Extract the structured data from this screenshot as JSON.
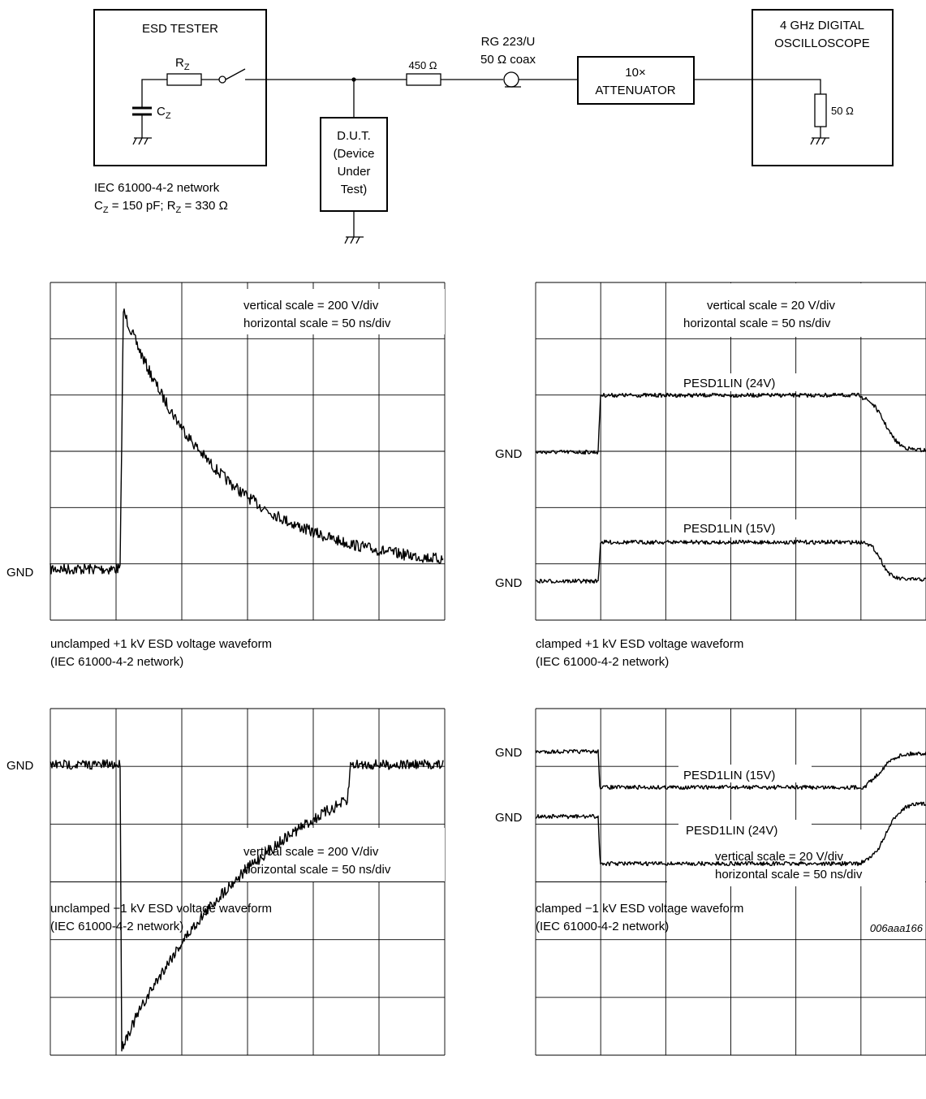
{
  "schematic": {
    "tester": {
      "title": "ESD TESTER",
      "rz": "R",
      "rz_sub": "Z",
      "cz": "C",
      "cz_sub": "Z",
      "network_line1": "IEC 61000-4-2 network",
      "network_line2_a": "C",
      "network_line2_sub1": "Z",
      "network_line2_b": " = 150 pF; R",
      "network_line2_sub2": "Z",
      "network_line2_c": " = 330 Ω"
    },
    "dut": {
      "line1": "D.U.T.",
      "line2": "(Device",
      "line3": "Under",
      "line4": "Test)"
    },
    "resistor_450": "450 Ω",
    "coax_line1": "RG 223/U",
    "coax_line2": "50 Ω coax",
    "attenuator_line1": "10×",
    "attenuator_line2": "ATTENUATOR",
    "scope_line1": "4 GHz DIGITAL",
    "scope_line2": "OSCILLOSCOPE",
    "scope_resistor": "50 Ω"
  },
  "panels": {
    "p1": {
      "scale_v": "vertical scale = 200 V/div",
      "scale_h": "horizontal scale = 50 ns/div",
      "gnd": "GND",
      "caption1": "unclamped +1 kV ESD voltage waveform",
      "caption2": "(IEC 61000-4-2 network)"
    },
    "p2": {
      "scale_v": "vertical scale = 20 V/div",
      "scale_h": "horizontal scale = 50 ns/div",
      "gnd_a": "GND",
      "gnd_b": "GND",
      "trace_a": "PESD1LIN (24V)",
      "trace_b": "PESD1LIN (15V)",
      "caption1": "clamped +1 kV ESD voltage waveform",
      "caption2": "(IEC 61000-4-2 network)"
    },
    "p3": {
      "scale_v": "vertical scale = 200 V/div",
      "scale_h": "horizontal scale = 50 ns/div",
      "gnd": "GND",
      "caption1": "unclamped −1 kV ESD voltage waveform",
      "caption2": "(IEC 61000-4-2 network)"
    },
    "p4": {
      "scale_v": "vertical scale = 20 V/div",
      "scale_h": "horizontal scale = 50 ns/div",
      "gnd_a": "GND",
      "gnd_b": "GND",
      "trace_a": "PESD1LIN (15V)",
      "trace_b": "PESD1LIN (24V)",
      "caption1": "clamped −1 kV ESD voltage waveform",
      "caption2": "(IEC 61000-4-2 network)"
    }
  },
  "figure_code": "006aaa166"
}
